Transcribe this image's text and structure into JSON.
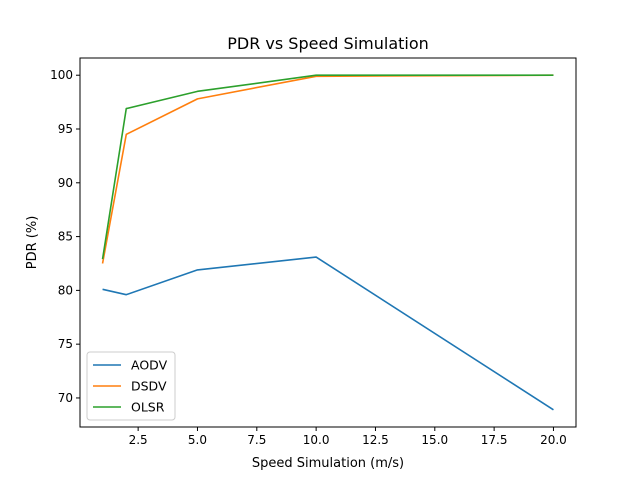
{
  "chart_data": {
    "type": "line",
    "title": "PDR vs Speed Simulation",
    "xlabel": "Speed Simulation  (m/s)",
    "ylabel": "PDR (%)",
    "xlim": [
      0.05,
      20.95
    ],
    "ylim": [
      67.3,
      101.6
    ],
    "xticks": [
      2.5,
      5.0,
      7.5,
      10.0,
      12.5,
      15.0,
      17.5,
      20.0
    ],
    "xtick_labels": [
      "2.5",
      "5.0",
      "7.5",
      "10.0",
      "12.5",
      "15.0",
      "17.5",
      "20.0"
    ],
    "yticks": [
      70,
      75,
      80,
      85,
      90,
      95,
      100
    ],
    "ytick_labels": [
      "70",
      "75",
      "80",
      "85",
      "90",
      "95",
      "100"
    ],
    "grid": false,
    "legend_position": "lower-left",
    "x": [
      1,
      2,
      5,
      10,
      20
    ],
    "series": [
      {
        "name": "AODV",
        "color": "#1f77b4",
        "values": [
          80.1,
          79.6,
          81.9,
          83.1,
          68.9
        ]
      },
      {
        "name": "DSDV",
        "color": "#ff7f0e",
        "values": [
          82.5,
          94.5,
          97.8,
          99.9,
          100.0
        ]
      },
      {
        "name": "OLSR",
        "color": "#2ca02c",
        "values": [
          82.9,
          96.9,
          98.5,
          100.0,
          100.0
        ]
      }
    ]
  }
}
